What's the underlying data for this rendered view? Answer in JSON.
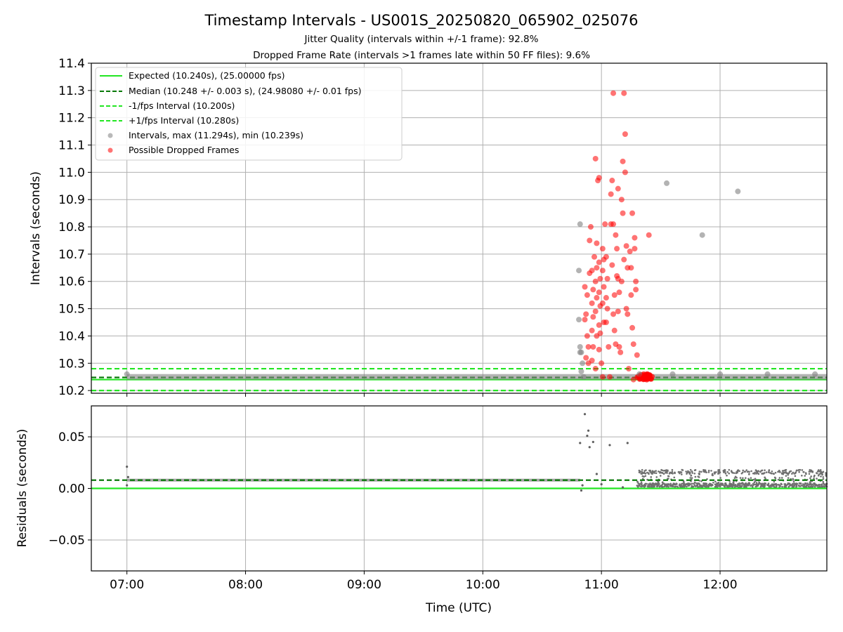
{
  "figure": {
    "title": "Timestamp Intervals - US001S_20250820_065902_025076",
    "subtitle_jitter": "Jitter Quality (intervals within +/-1 frame): 92.8%",
    "subtitle_dropped": "Dropped Frame Rate (intervals >1 frames late within 50 FF files): 9.6%"
  },
  "colors": {
    "expected": "#22e622",
    "median": "#0a7a0a",
    "interval_band": "#22e622",
    "intervals": "#808080",
    "dropped": "#ff0000",
    "grid": "#b0b0b0"
  },
  "chart_data": [
    {
      "type": "scatter",
      "ylabel": "Intervals (seconds)",
      "xlim": [
        6.7,
        12.9
      ],
      "ylim": [
        10.19,
        11.4
      ],
      "x_unit": "hour of day (UTC)",
      "grid": true,
      "legend_position": "top-left",
      "yticks": [
        "10.2",
        "10.3",
        "10.4",
        "10.5",
        "10.6",
        "10.7",
        "10.8",
        "10.9",
        "11.0",
        "11.1",
        "11.2",
        "11.3",
        "11.4"
      ],
      "reference_lines": [
        {
          "name": "Expected (10.240s), (25.00000 fps)",
          "y": 10.24,
          "style": "solid"
        },
        {
          "name": "Median (10.248 +/- 0.003 s), (24.98080 +/- 0.01 fps)",
          "y": 10.248,
          "style": "dashed"
        },
        {
          "name": "-1/fps Interval (10.200s)",
          "y": 10.2,
          "style": "dashed"
        },
        {
          "name": "+1/fps Interval (10.280s)",
          "y": 10.28,
          "style": "dashed"
        }
      ],
      "series": [
        {
          "name": "Intervals, max (11.294s), min (10.239s)",
          "note_dense_band": {
            "x_start": 7.0,
            "x_end": 12.9,
            "y": 10.25
          },
          "points": [
            [
              7.0,
              10.26
            ],
            [
              10.82,
              10.81
            ],
            [
              10.81,
              10.64
            ],
            [
              10.81,
              10.46
            ],
            [
              10.82,
              10.36
            ],
            [
              10.83,
              10.34
            ],
            [
              10.82,
              10.34
            ],
            [
              10.84,
              10.3
            ],
            [
              10.83,
              10.27
            ],
            [
              10.85,
              10.25
            ],
            [
              11.55,
              10.96
            ],
            [
              11.85,
              10.77
            ],
            [
              12.15,
              10.93
            ],
            [
              11.32,
              10.26
            ],
            [
              11.6,
              10.26
            ],
            [
              12.0,
              10.26
            ],
            [
              12.4,
              10.26
            ],
            [
              12.8,
              10.26
            ]
          ]
        },
        {
          "name": "Possible Dropped Frames",
          "points": [
            [
              10.9,
              10.75
            ],
            [
              10.9,
              10.63
            ],
            [
              10.88,
              10.55
            ],
            [
              10.87,
              10.48
            ],
            [
              10.86,
              10.46
            ],
            [
              10.88,
              10.4
            ],
            [
              10.89,
              10.36
            ],
            [
              10.87,
              10.32
            ],
            [
              10.89,
              10.3
            ],
            [
              10.86,
              10.58
            ],
            [
              10.91,
              10.8
            ],
            [
              10.92,
              10.64
            ],
            [
              10.93,
              10.57
            ],
            [
              10.92,
              10.52
            ],
            [
              10.93,
              10.47
            ],
            [
              10.92,
              10.42
            ],
            [
              10.93,
              10.36
            ],
            [
              10.92,
              10.31
            ],
            [
              10.94,
              10.69
            ],
            [
              10.95,
              11.05
            ],
            [
              10.96,
              10.74
            ],
            [
              10.96,
              10.65
            ],
            [
              10.95,
              10.6
            ],
            [
              10.96,
              10.54
            ],
            [
              10.95,
              10.49
            ],
            [
              10.96,
              10.4
            ],
            [
              10.95,
              10.28
            ],
            [
              10.97,
              10.97
            ],
            [
              10.98,
              10.98
            ],
            [
              10.98,
              10.67
            ],
            [
              10.99,
              10.61
            ],
            [
              10.98,
              10.56
            ],
            [
              10.99,
              10.51
            ],
            [
              10.98,
              10.44
            ],
            [
              10.99,
              10.41
            ],
            [
              10.98,
              10.35
            ],
            [
              11.0,
              10.3
            ],
            [
              11.01,
              10.72
            ],
            [
              11.02,
              10.68
            ],
            [
              11.01,
              10.64
            ],
            [
              11.02,
              10.58
            ],
            [
              11.01,
              10.52
            ],
            [
              11.02,
              10.45
            ],
            [
              11.01,
              10.25
            ],
            [
              11.03,
              10.81
            ],
            [
              11.04,
              10.69
            ],
            [
              11.05,
              10.61
            ],
            [
              11.04,
              10.54
            ],
            [
              11.05,
              10.5
            ],
            [
              11.04,
              10.45
            ],
            [
              11.06,
              10.36
            ],
            [
              11.07,
              10.25
            ],
            [
              11.08,
              10.92
            ],
            [
              11.08,
              10.81
            ],
            [
              11.09,
              10.97
            ],
            [
              11.09,
              10.66
            ],
            [
              11.1,
              11.29
            ],
            [
              11.1,
              10.81
            ],
            [
              11.11,
              10.55
            ],
            [
              11.1,
              10.48
            ],
            [
              11.11,
              10.42
            ],
            [
              11.12,
              10.37
            ],
            [
              11.12,
              10.77
            ],
            [
              11.13,
              10.72
            ],
            [
              11.13,
              10.62
            ],
            [
              11.14,
              10.94
            ],
            [
              11.14,
              10.61
            ],
            [
              11.15,
              10.56
            ],
            [
              11.14,
              10.49
            ],
            [
              11.15,
              10.36
            ],
            [
              11.16,
              10.34
            ],
            [
              11.17,
              10.9
            ],
            [
              11.17,
              10.6
            ],
            [
              11.18,
              11.04
            ],
            [
              11.18,
              10.85
            ],
            [
              11.19,
              11.29
            ],
            [
              11.19,
              10.68
            ],
            [
              11.2,
              11.14
            ],
            [
              11.2,
              11.0
            ],
            [
              11.21,
              10.73
            ],
            [
              11.22,
              10.65
            ],
            [
              11.22,
              10.48
            ],
            [
              11.21,
              10.5
            ],
            [
              11.23,
              10.28
            ],
            [
              11.24,
              10.71
            ],
            [
              11.25,
              10.65
            ],
            [
              11.25,
              10.55
            ],
            [
              11.26,
              10.85
            ],
            [
              11.26,
              10.43
            ],
            [
              11.27,
              10.37
            ],
            [
              11.28,
              10.76
            ],
            [
              11.28,
              10.72
            ],
            [
              11.29,
              10.6
            ],
            [
              11.29,
              10.57
            ],
            [
              11.3,
              10.33
            ],
            [
              11.27,
              10.24
            ],
            [
              11.33,
              10.25
            ],
            [
              11.37,
              10.25
            ],
            [
              11.4,
              10.77
            ]
          ],
          "note_cluster": {
            "x_start": 11.3,
            "x_end": 11.43,
            "y": 10.25
          }
        }
      ]
    },
    {
      "type": "scatter",
      "xlabel": "Time (UTC)",
      "ylabel": "Residuals (seconds)",
      "xlim": [
        6.7,
        12.9
      ],
      "ylim": [
        -0.08,
        0.08
      ],
      "grid": true,
      "xticks": [
        "07:00",
        "08:00",
        "09:00",
        "10:00",
        "11:00",
        "12:00"
      ],
      "yticks": [
        "−0.05",
        "0.00",
        "0.05"
      ],
      "reference_lines": [
        {
          "y": 0.0,
          "style": "solid"
        },
        {
          "y": 0.008,
          "style": "dashed"
        }
      ],
      "series": [
        {
          "points": [
            [
              7.0,
              0.021
            ],
            [
              7.0,
              0.003
            ],
            [
              7.01,
              0.011
            ],
            [
              10.82,
              0.044
            ],
            [
              10.86,
              0.072
            ],
            [
              10.88,
              0.051
            ],
            [
              10.89,
              0.056
            ],
            [
              10.9,
              0.04
            ],
            [
              10.93,
              0.045
            ],
            [
              10.96,
              0.014
            ],
            [
              11.07,
              0.042
            ],
            [
              11.22,
              0.044
            ],
            [
              10.83,
              -0.002
            ],
            [
              10.84,
              0.003
            ],
            [
              11.0,
              0.004
            ],
            [
              11.18,
              0.001
            ]
          ],
          "note_dense_band": {
            "x_start": 7.0,
            "x_end": 10.82,
            "y": 0.008
          },
          "note_late_band": {
            "x_start": 11.3,
            "x_end": 12.9,
            "y_low": 0.001,
            "y_high": 0.018
          }
        }
      ]
    }
  ]
}
